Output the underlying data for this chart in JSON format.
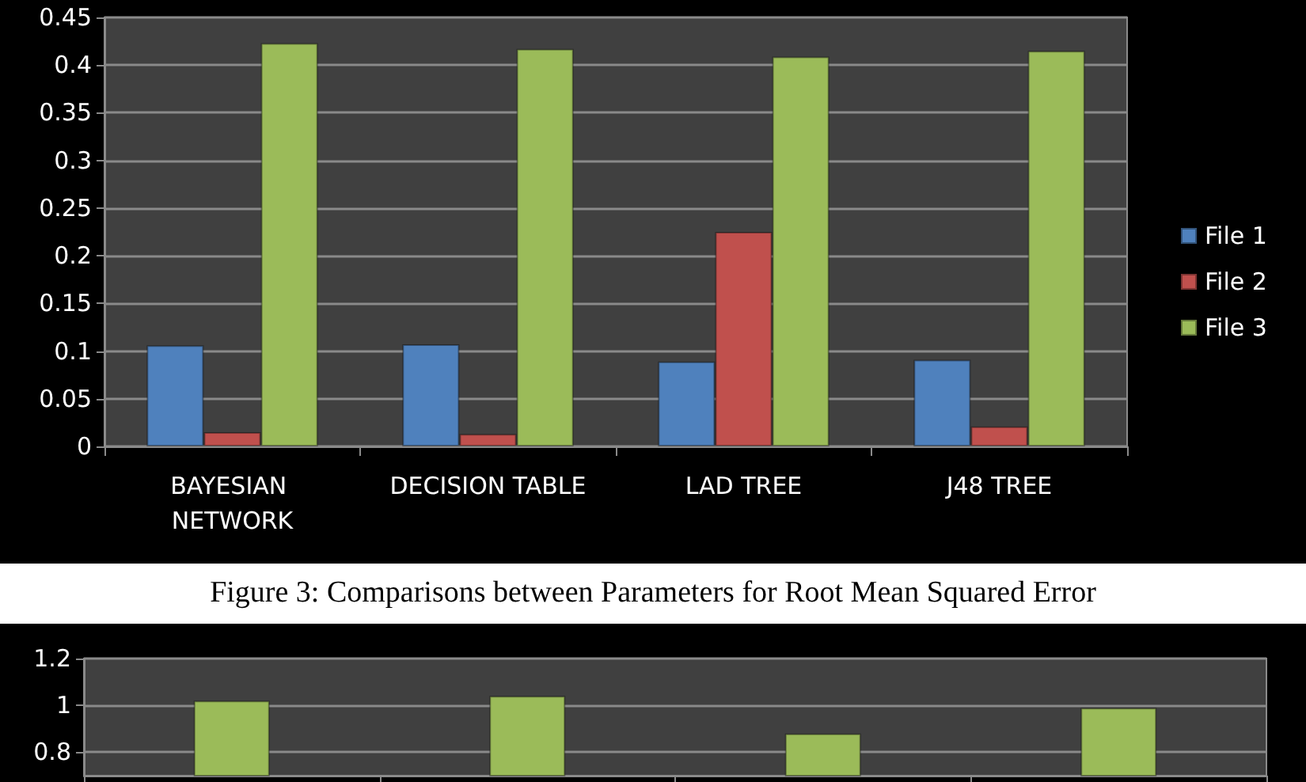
{
  "chart_data": [
    {
      "type": "bar",
      "categories": [
        "BAYESIAN NETWORK",
        "DECISION TABLE",
        "LAD TREE",
        "J48 TREE"
      ],
      "series": [
        {
          "name": "File 1",
          "color": "#4f81bd",
          "values": [
            0.106,
            0.107,
            0.089,
            0.091
          ]
        },
        {
          "name": "File 2",
          "color": "#c0504d",
          "values": [
            0.015,
            0.013,
            0.225,
            0.021
          ]
        },
        {
          "name": "File 3",
          "color": "#9bbb59",
          "values": [
            0.423,
            0.417,
            0.409,
            0.415
          ]
        }
      ],
      "ylim": [
        0,
        0.45
      ],
      "yticks": [
        0,
        0.05,
        0.1,
        0.15,
        0.2,
        0.25,
        0.3,
        0.35,
        0.4,
        0.45
      ],
      "grid": "y",
      "legend": "right",
      "annotations": [
        "Figure 3: Comparisons between Parameters for Root Mean Squared Error"
      ]
    },
    {
      "type": "bar",
      "categories": [
        null,
        null,
        null,
        null
      ],
      "series": [
        {
          "color": "#9bbb59",
          "values": [
            1.02,
            1.04,
            0.88,
            0.99
          ]
        }
      ],
      "ylim": [
        0.7,
        1.2
      ],
      "yticks": [
        0.8,
        1,
        1.2
      ],
      "grid": "y",
      "tick_labels": "y"
    }
  ]
}
